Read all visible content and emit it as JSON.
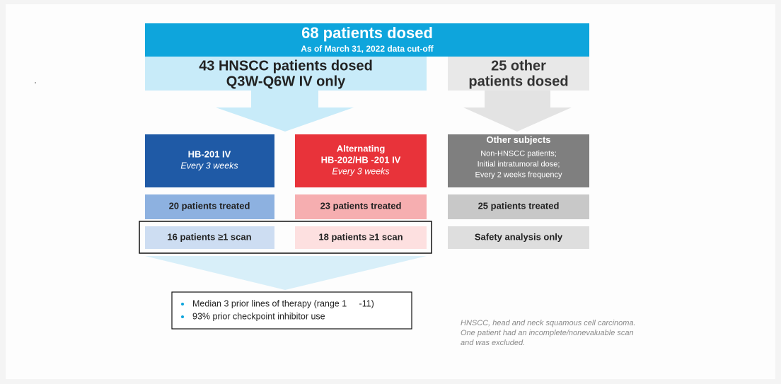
{
  "header": {
    "title": "68 patients dosed",
    "subtitle": "As of March 31, 2022 data cut-off"
  },
  "groups": [
    {
      "title": [
        "43 HNSCC patients dosed",
        "Q3W-Q6W IV only"
      ]
    },
    {
      "title": [
        "25 other",
        "patients dosed"
      ]
    }
  ],
  "arms": [
    {
      "name": [
        "HB-201 IV"
      ],
      "schedule": [
        "Every 3 weeks"
      ],
      "treated": "20 patients treated",
      "scanned": "16 patients ≥1 scan"
    },
    {
      "name": [
        "Alternating",
        "HB-202/HB -201 IV"
      ],
      "schedule": [
        "Every 3 weeks"
      ],
      "treated": "23 patients treated",
      "scanned": "18 patients ≥1 scan"
    },
    {
      "name": [
        "Other subjects"
      ],
      "schedule": [
        "Non-HNSCC patients;",
        "Initial intratumoral dose;",
        "Every 2 weeks frequency"
      ],
      "treated": "25 patients treated",
      "scanned": "Safety analysis only"
    }
  ],
  "summary": [
    "Median 3 prior lines of therapy (range 1     -11)",
    "93% prior checkpoint inhibitor use"
  ],
  "footnote": [
    "HNSCC, head and neck squamous cell carcinoma.",
    "One patient had an incomplete/nonevaluable scan",
    "and was excluded."
  ]
}
